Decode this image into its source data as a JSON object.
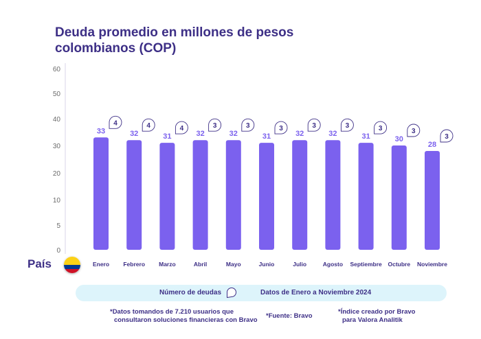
{
  "chart_data": {
    "type": "bar",
    "title": "Deuda promedio en millones de pesos colombianos (COP)",
    "categories": [
      "Enero",
      "Febrero",
      "Marzo",
      "Abril",
      "Mayo",
      "Junio",
      "Julio",
      "Agosto",
      "Septiembre",
      "Octubre",
      "Noviembre"
    ],
    "series": [
      {
        "name": "Deuda promedio",
        "values": [
          33,
          32,
          31,
          32,
          32,
          31,
          32,
          32,
          31,
          30,
          28
        ],
        "color": "#7b61ee"
      },
      {
        "name": "Número de deudas",
        "values": [
          4,
          4,
          4,
          3,
          3,
          3,
          3,
          3,
          3,
          3,
          3
        ]
      }
    ],
    "y_ticks": [
      0,
      5,
      10,
      20,
      30,
      40,
      50,
      60
    ],
    "ylim": [
      0,
      60
    ],
    "grid": false,
    "legend": "bottom"
  },
  "country": {
    "label": "País",
    "flag": "colombia-flag"
  },
  "legend": {
    "debts_label": "Número de deudas",
    "period_label": "Datos de Enero a Noviembre 2024"
  },
  "notes": {
    "data_note_line1": "*Datos tomandos de 7.210 usuarios que",
    "data_note_line2": "consultaron soluciones financieras con Bravo",
    "source": "*Fuente: Bravo",
    "index_line1": "*Índice creado por Bravo",
    "index_line2": "para Valora Analitik"
  },
  "colors": {
    "bar": "#7b61ee",
    "text": "#3d2f86",
    "legend_bg": "#ddf4fb"
  }
}
